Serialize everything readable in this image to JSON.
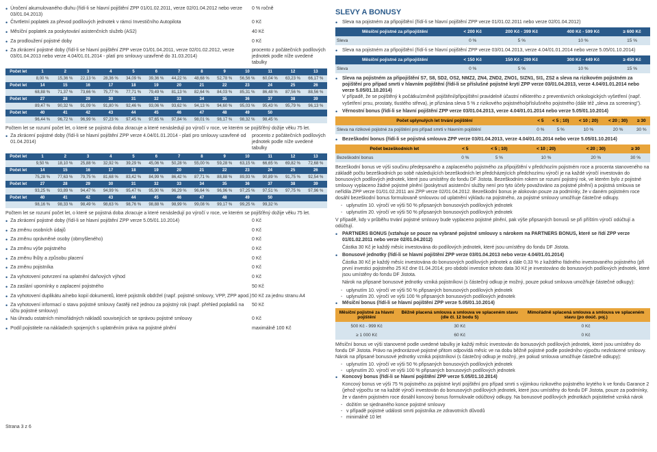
{
  "left": {
    "fees": [
      {
        "label": "Úročení akumulovaného dluhu (řídí-li se hlavní pojištění ZPP 01/01.02.2011, verze 02/01.04.2012 nebo verze 03/01.04.2013)",
        "val": "0 % ročně"
      },
      {
        "label": "Čtvrtletní poplatek za převod podílových jednotek v rámci Investičního Autopilota",
        "val": "0 Kč"
      },
      {
        "label": "Měsíční poplatek za poskytování asistenčních služeb (AS2)",
        "val": "40 Kč"
      },
      {
        "label": "Za prodloužení pojistné doby",
        "val": "0 Kč"
      },
      {
        "label": "Za zkrácení pojistné doby (řídí-li se hlavní pojištění ZPP verze 01/01.04.2011, verze 02/01.02.2012, verze 03/01.04.2013 nebo verze 4.04/01.01.2014 - platí pro smlouvy uzavřené do 31.03.2014)",
        "val": "procento z počátečních podílových jednotek podle níže uvedené tabulky"
      }
    ],
    "table1": {
      "rows": [
        {
          "h": [
            "Počet let",
            "1",
            "2",
            "3",
            "4",
            "5",
            "6",
            "7",
            "8",
            "9",
            "10",
            "11",
            "12",
            "13"
          ],
          "v": [
            "",
            "8,00 %",
            "15,36 %",
            "22,13 %",
            "28,36 %",
            "34,09 %",
            "39,36 %",
            "44,22 %",
            "48,68 %",
            "52,78 %",
            "56,56 %",
            "60,04 %",
            "63,23 %",
            "66,17 %"
          ]
        },
        {
          "h": [
            "Počet let",
            "14",
            "15",
            "16",
            "17",
            "18",
            "19",
            "20",
            "21",
            "22",
            "23",
            "24",
            "25",
            "26"
          ],
          "v": [
            "",
            "68,88 %",
            "71,37 %",
            "73,66 %",
            "75,77 %",
            "77,71 %",
            "79,49 %",
            "81,13 %",
            "82,64 %",
            "84,03 %",
            "85,31 %",
            "86,48 %",
            "87,56 %",
            "88,56 %"
          ]
        },
        {
          "h": [
            "Počet let",
            "27",
            "28",
            "29",
            "30",
            "31",
            "32",
            "33",
            "34",
            "35",
            "36",
            "37",
            "38",
            "39"
          ],
          "v": [
            "",
            "89,47 %",
            "90,32 %",
            "91,09 %",
            "91,80 %",
            "92,46 %",
            "93,06 %",
            "93,62 %",
            "94,13 %",
            "94,60 %",
            "95,03 %",
            "95,43 %",
            "95,79 %",
            "96,13 %"
          ]
        },
        {
          "h": [
            "Počet let",
            "40",
            "41",
            "42",
            "43",
            "44",
            "45",
            "46",
            "47",
            "48",
            "49",
            "50",
            "",
            ""
          ],
          "v": [
            "",
            "96,44 %",
            "96,72 %",
            "96,99 %",
            "97,23 %",
            "97,45 %",
            "97,65 %",
            "97,84 %",
            "98,01 %",
            "98,17 %",
            "98,32 %",
            "98,45 %",
            "",
            ""
          ]
        }
      ]
    },
    "note1": "Počtem let se rozumí počet let, o které se pojistná doba zkracuje a které nenásledují po výročí v roce, ve kterém se pojišťěný dožije věku 75 let.",
    "fee2": {
      "label": "Za zkrácení pojistné doby (řídí-li se hlavní pojištění ZPP verze 4.04/01.01.2014 - platí pro smlouvy uzavřené od 01.04.2014)",
      "val": "procento z počátečních podílových jednotek podle níže uvedené tabulky"
    },
    "table2": {
      "rows": [
        {
          "h": [
            "Počet let",
            "1",
            "2",
            "3",
            "4",
            "5",
            "6",
            "7",
            "8",
            "9",
            "10",
            "11",
            "12",
            "13"
          ],
          "v": [
            "",
            "9,50 %",
            "18,10 %",
            "25,88 %",
            "32,92 %",
            "39,29 %",
            "45,06 %",
            "50,28 %",
            "55,00 %",
            "59,28 %",
            "63,15 %",
            "66,65 %",
            "69,82 %",
            "72,68 %"
          ]
        },
        {
          "h": [
            "Počet let",
            "14",
            "15",
            "16",
            "17",
            "18",
            "19",
            "20",
            "21",
            "22",
            "23",
            "24",
            "25",
            "26"
          ],
          "v": [
            "",
            "75,28 %",
            "77,63 %",
            "79,75 %",
            "81,68 %",
            "83,42 %",
            "84,99 %",
            "86,42 %",
            "87,71 %",
            "88,88 %",
            "89,93 %",
            "90,89 %",
            "91,75 %",
            "92,54 %"
          ]
        },
        {
          "h": [
            "Počet let",
            "27",
            "28",
            "29",
            "30",
            "31",
            "32",
            "33",
            "34",
            "35",
            "36",
            "37",
            "38",
            "39"
          ],
          "v": [
            "",
            "93,25 %",
            "93,89 %",
            "94,47 %",
            "94,99 %",
            "95,47 %",
            "95,90 %",
            "96,29 %",
            "96,64 %",
            "96,96 %",
            "97,25 %",
            "97,51 %",
            "97,75 %",
            "97,96 %"
          ]
        },
        {
          "h": [
            "Počet let",
            "40",
            "41",
            "42",
            "43",
            "44",
            "45",
            "46",
            "47",
            "48",
            "49",
            "50",
            "",
            ""
          ],
          "v": [
            "",
            "98,16 %",
            "98,33 %",
            "98,49 %",
            "98,63 %",
            "98,76 %",
            "98,88 %",
            "98,99 %",
            "99,08 %",
            "99,17 %",
            "99,25 %",
            "99,32 %",
            "",
            ""
          ]
        }
      ]
    },
    "note2": "Počtem let se rozumí počet let, o které se pojistná doba zkracuje a které nenásledují po výročí v roce, ve kterém se pojišťěný dožije věku 75 let.",
    "fees2": [
      {
        "label": "Za zkrácení pojistné doby (řídí-li se hlavní pojištění ZPP verze 5.05/01.10.2014)",
        "val": "0 Kč"
      },
      {
        "label": "Za změnu osobních údajů",
        "val": "0 Kč"
      },
      {
        "label": "Za změnu oprávněné osoby (obmyšleného)",
        "val": "0 Kč"
      },
      {
        "label": "Za změnu výše pojistného",
        "val": "0 Kč"
      },
      {
        "label": "Za změnu lhůty a způsobu placení",
        "val": "0 Kč"
      },
      {
        "label": "Za změnu pojistníka",
        "val": "0 Kč"
      },
      {
        "label": "Za vyhotovení potvrzení na uplatnění daňových výhod",
        "val": "0 Kč"
      },
      {
        "label": "Za zaslání upomínky o zaplacení pojistného",
        "val": "50 Kč"
      },
      {
        "label": "Za vyhotovení duplikátu a/nebo kopií dokumentů, které pojistník obdržel (např. pojistné smlouvy, VPP, ZPP apod.)",
        "val": "50 Kč za jednu stranu A4"
      },
      {
        "label": "Za vyhotovení informací o stavu pojistné smlouvy častěji než jednou za pojistný rok (např. přehled poplatků na účtu pojistné smlouvy)",
        "val": "50 Kč"
      },
      {
        "label": "Na úhradu ostatních mimořádných nákladů souvisejících se správou pojistné smlouvy",
        "val": "0 Kč"
      },
      {
        "label": "Podíl pojistitele na nákladech spojených s uplatněním práva na pojistné plnění",
        "val": "maximálně 100 Kč"
      }
    ],
    "footer": "Strana 3 z 6"
  },
  "right": {
    "title": "SLEVY A BONUSY",
    "bul1": "Sleva na pojistném za připojištění (řídí-li se hlavní pojištění ZPP verze 01/01.02.2011 nebo verze 02/01.04.2012)",
    "t1": {
      "head": [
        "Měsíční pojistné za připojištění",
        "< 200 Kč",
        "200 Kč - 399 Kč",
        "400 Kč - 599 Kč",
        "≥ 600 Kč"
      ],
      "row": [
        "Sleva",
        "0 %",
        "5 %",
        "10 %",
        "15 %"
      ]
    },
    "bul2": "Sleva na pojistném za připojištění (řídí-li se hlavní pojištění ZPP verze 03/01.04.2013, verze 4.04/01.01.2014 nebo verze 5.05/01.10.2014)",
    "t2": {
      "head": [
        "Měsíční pojistné za připojištění",
        "< 150 Kč",
        "150 Kč - 299 Kč",
        "300 Kč - 449 Kč",
        "≥ 450 Kč"
      ],
      "row": [
        "Sleva",
        "0 %",
        "5 %",
        "10 %",
        "15 %"
      ]
    },
    "bul3": "Sleva na pojistném za připojištění S7, S8, SD2, OS2, NMZ2, ZN4, ZND2, ZNO1, SIZN1, SI1, ZS2 a sleva na rizikovém pojistném za pojištění pro případ smrti v hlavním pojištění (řídí-li se příslušné pojistné krytí ZPP verze 03/01.04.2013, verze 4.04/01.01.2014 nebo verze 5.05/01.10.2014)",
    "bul3b": "V případě, že se pojištěný k počátku/změně pojištění/připojištění pravidelně účastní některého z preventivních onkologických vyšetření (např. vyšetření prsu, prostaty, tlustého střeva), je přiznána sleva 5 % z rizikového pojistného/příslušného pojistného (dále též „sleva za screening\").",
    "bul4": "Věrnostní bonus (řídí-li se hlavní pojištění ZPP verze 03/01.04.2013, verze 4.04/01.01.2014 nebo verze 5.05/01.10.2014)",
    "t3": {
      "h1": [
        "Počet uplynulých let trvání pojištění",
        "< 5",
        "< 5 ; 10)",
        "< 10 ; 20)",
        "< 20 ; 30)",
        "≥ 30"
      ],
      "h2": [
        "Sleva na rizikové pojistné za pojištění pro případ smrti v hlavním pojištění",
        "0 %",
        "5 %",
        "10 %",
        "20 %",
        "30 %"
      ]
    },
    "bul5": "Bezeškodní bonus (řídí-li se pojistná smlouva ZPP verze 03/01.04.2013, verze 4.04/01.01.2014 nebo verze 5.05/01.10.2014)",
    "t4": {
      "h1": [
        "Počet bezeškodních let",
        "< 5",
        "< 5 ; 10)",
        "< 10 ; 20)",
        "< 20 ; 30)",
        "≥ 30"
      ],
      "h2": [
        "Bezeškodní bonus",
        "0 %",
        "5 %",
        "10 %",
        "20 %",
        "30 %"
      ]
    },
    "p1": "Bezeškodní bonus ve výši součinu předepsaného a zaplaceného pojistného za připojištění v předchozím pojistném roce a procenta stanoveného na základě počtu bezeškodních po sobě následujících bezeškodních let předcházejících předchozímu výročí je na každé výročí investován do bonusových podílových jednotek, které jsou umístěny do fondu DF Jistota. Bezeškodním rokem se rozumí pojistný rok, ve kterém bylo z pojistné smlouvy vyplaceno žádné pojistné plnění (poskytnutí asistenční služby není pro tyto účely považováno za pojistné plnění) a pojistná smlouva se neřídila ZPP verze 01/01.02.2011 ani ZPP verze 02/01.04.2012. Bezeškodní bonus je alokován pouze za podmínky, že v daném pojistném roce dosáhl bezeškodní bonus formulovaně smlouvou od uplatnění výkladu na pojistného, za pojistné smlouvy umožňuje částečné odkupy.",
    "inds": [
      "uplynutím 10. výročí ve výši 50 % připsaných bonusových podílových jednotek",
      "uplynutím 20. výročí ve výši 50 % připsaných bonusových podílových jednotek"
    ],
    "p1b": "V případě, kdy v průběhu trvání pojistné smlouvy bude vyplaceno pojistné plnění, pak výše připsaných bonusů se při příštím výročí odúčtují a odúčtují.",
    "bul6": "PARTNERS BONUS (vztahuje se pouze na vybrané pojistné smlouvy s nárokem na PARTNERS BONUS, které se řídí ZPP verze 01/01.02.2011 nebo verze 02/01.04.2012)",
    "p2": "Částka 30 Kč je každý měsíc investována do podílových jednotek, které jsou umístěny do fondu DF Jistota.",
    "bul7": "Bonusové jednotky (řídí-li se hlavní pojištění ZPP verze 03/01.04.2013 nebo verze 4.04/01.01.2014)",
    "p3": "Částka 30 Kč je každý měsíc investována do bonusových podílových jednotek a dále 0,33 % z každého řádného investovaného pojistného (při první investici pojistného 25 Kč dne 01.04.2014; pro období investice tohoto data 30 Kč je investováno do bonusových podílových jednotek, které jsou umístěny do fondu DF Jistota.",
    "p3b": "Nárok na připsané bonusové jednotky vzniká pojistníkovi (s částečný odkup je možný, pouze pokud smlouva umožňuje částečné odkupy):",
    "inds2": [
      "uplynutím 10. výročí ve výši 50 % připsaných bonusových podílových jednotek",
      "uplynutím 20. výročí ve výši 100 % připsaných bonusových podílových jednotek"
    ],
    "bul8": "Měsíční bonus (řídí-li se hlavní pojištění ZPP verze 5.05/01.10.2014)",
    "t5": {
      "head": [
        "Měsíční pojistné za hlavní pojištění",
        "Běžně placená smlouva a smlouva ve splaceném stavu (dle čl. 12 bodu 5)",
        "Mimořádně splacená smlouva a smlouva ve splaceném stavu (po doúč. poj.)"
      ],
      "r1": [
        "500 Kč - 999 Kč",
        "30 Kč",
        "0 Kč"
      ],
      "r2": [
        "≥ 1 000 Kč",
        "60 Kč",
        "0 Kč"
      ]
    },
    "p4": "Měsíční bonus ve výši stanovené podle uvedené tabulky je každý měsíc investován do bonusových podílových jednotek, které jsou umístěny do fondu DF Jistota. Právo na jednorázové pojistné přitom odpovídá měsíc ve na dobu běžně pojistné podle posledního výpočtu nezkrácené smlouvy. Nárok na připsané bonusové jednotky vzniká pojistníkovi (s částečný odkup je možný, jen pokud smlouva umožňuje částečné odkupy):",
    "inds3": [
      "uplynutím 10. výročí ve výši 50 % připsaných bonusových podílových jednotek",
      "uplynutím 20. výročí ve výši 100 % připsaných bonusových podílových jednotek"
    ],
    "bul9": "Koncový bonus (řídí-li se hlavní pojištění ZPP verze 5.05/01.10.2014)",
    "p5": "Koncový bonus ve výši 75 % pojistného za pojistné krytí pojištění pro případ smrti s výjimkou rizikového pojistného krytého k ve fondu Garance 2 (jehož výpočtu se na každé výročí investován do bonusových podílových jednotek, které jsou umístěny do fondu DF Jistota, pouze za podmínky, že v daném pojistném roce dosáhl koncový bonus formulovale odúčtový odkupy. Na bonusové podílových jednotkách pojistitelné vzniká nárok",
    "inds4": [
      "dožitím se sjednaného konce pojistné smlouvy",
      "v případě pojistné události smrti pojistníka ze zdravotních důvodů",
      "minimálně 10 let"
    ]
  }
}
